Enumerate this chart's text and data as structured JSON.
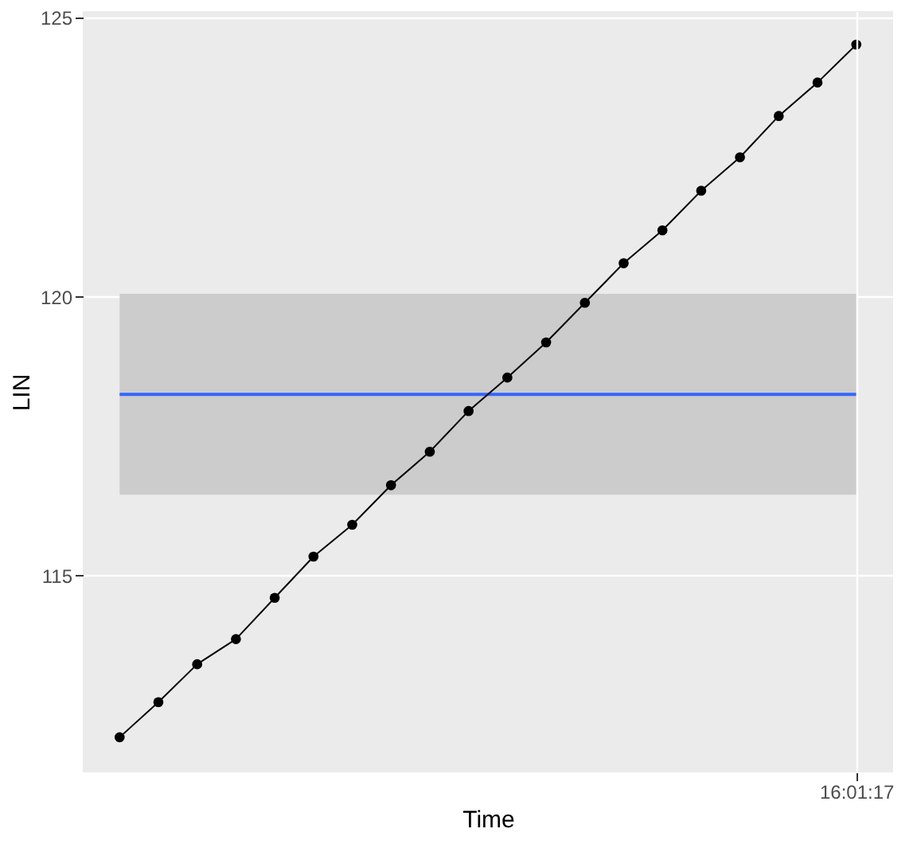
{
  "chart_data": {
    "type": "line",
    "xlabel": "Time",
    "ylabel": "LIN",
    "categories": [
      null,
      null,
      null,
      null,
      null,
      null,
      null,
      null,
      null,
      null,
      null,
      null,
      null,
      null,
      null,
      null,
      null,
      null,
      null,
      "16:01:17"
    ],
    "series": [
      {
        "color": "#000000",
        "values": [
          112.1,
          112.73,
          113.41,
          113.86,
          114.6,
          115.34,
          115.91,
          116.62,
          117.22,
          117.95,
          118.55,
          119.18,
          119.89,
          120.6,
          121.19,
          121.9,
          122.5,
          123.24,
          123.84,
          124.52
        ]
      }
    ],
    "ylim": [
      111.47,
      125.12
    ],
    "yticks": [
      115,
      120,
      125
    ],
    "grid": true,
    "marker": "circle",
    "line_style": "solid",
    "ref_lines": [
      {
        "axis": "y",
        "value": 118.25,
        "label": null,
        "color": "#3366ff"
      }
    ],
    "bands": [
      {
        "axis": "y",
        "from": 116.45,
        "to": 120.05,
        "label": null,
        "color": "#cccccc"
      }
    ]
  }
}
